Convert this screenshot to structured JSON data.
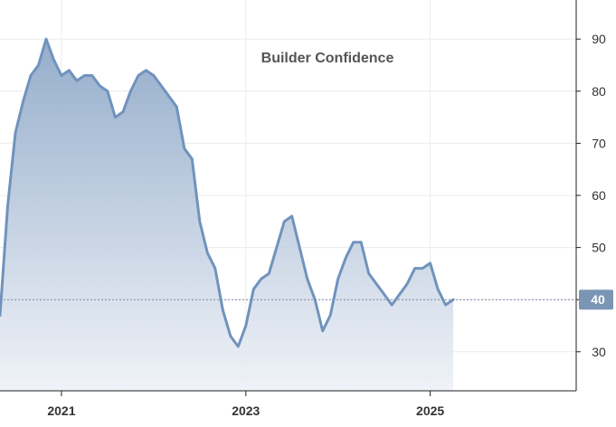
{
  "chart_data": {
    "type": "area",
    "title": "Builder Confidence",
    "xlabel": "",
    "ylabel": "",
    "x_ticks": [
      "2021",
      "2023",
      "2025"
    ],
    "y_ticks": [
      30,
      40,
      50,
      60,
      70,
      80,
      90
    ],
    "ylim": [
      22.5,
      97.5
    ],
    "xlim": [
      "2020-05",
      "2026-08"
    ],
    "grid": true,
    "legend": "none",
    "last_value_badge": "40",
    "reference_line_value": 40,
    "colors": {
      "line": "#7093bd",
      "fill_top": "#8fa9c8",
      "fill_bottom": "#eef1f7",
      "badge": "#7b95b5",
      "grid": "#ececec",
      "axis": "#222222"
    },
    "series": [
      {
        "x": [
          "2020-05",
          "2020-06",
          "2020-07",
          "2020-08",
          "2020-09",
          "2020-10",
          "2020-11",
          "2020-12",
          "2021-01",
          "2021-02",
          "2021-03",
          "2021-04",
          "2021-05",
          "2021-06",
          "2021-07",
          "2021-08",
          "2021-09",
          "2021-10",
          "2021-11",
          "2021-12",
          "2022-01",
          "2022-02",
          "2022-03",
          "2022-04",
          "2022-05",
          "2022-06",
          "2022-07",
          "2022-08",
          "2022-09",
          "2022-10",
          "2022-11",
          "2022-12",
          "2023-01",
          "2023-02",
          "2023-03",
          "2023-04",
          "2023-05",
          "2023-06",
          "2023-07",
          "2023-08",
          "2023-09",
          "2023-10",
          "2023-11",
          "2023-12",
          "2024-01",
          "2024-02",
          "2024-03",
          "2024-04",
          "2024-05",
          "2024-06",
          "2024-07",
          "2024-08",
          "2024-09",
          "2024-10",
          "2024-11",
          "2024-12",
          "2025-01",
          "2025-02",
          "2025-03",
          "2025-04"
        ],
        "values": [
          37,
          58,
          72,
          78,
          83,
          85,
          90,
          86,
          83,
          84,
          82,
          83,
          83,
          81,
          80,
          75,
          76,
          80,
          83,
          84,
          83,
          81,
          79,
          77,
          69,
          67,
          55,
          49,
          46,
          38,
          33,
          31,
          35,
          42,
          44,
          45,
          50,
          55,
          56,
          50,
          44,
          40,
          34,
          37,
          44,
          48,
          51,
          51,
          45,
          43,
          41,
          39,
          41,
          43,
          46,
          46,
          47,
          42,
          39,
          40
        ]
      }
    ]
  }
}
